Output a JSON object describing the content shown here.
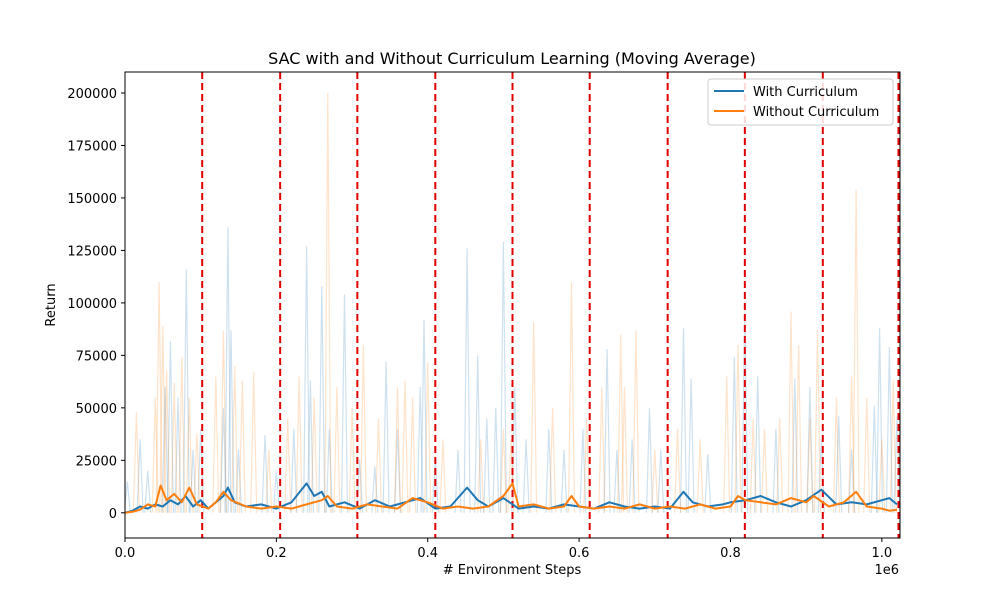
{
  "chart_data": {
    "type": "line",
    "title": "SAC with and Without Curriculum Learning (Moving Average)",
    "xlabel": "# Environment Steps",
    "ylabel": "Return",
    "x_offset_label": "1e6",
    "xlim": [
      0,
      1.024
    ],
    "ylim": [
      -12000,
      210000
    ],
    "x_ticks": [
      0.0,
      0.2,
      0.4,
      0.6,
      0.8,
      1.0
    ],
    "x_tick_labels": [
      "0.0",
      "0.2",
      "0.4",
      "0.6",
      "0.8",
      "1.0"
    ],
    "y_ticks": [
      0,
      25000,
      50000,
      75000,
      100000,
      125000,
      150000,
      175000,
      200000
    ],
    "y_tick_labels": [
      "0",
      "25000",
      "50000",
      "75000",
      "100000",
      "125000",
      "150000",
      "175000",
      "200000"
    ],
    "grid": false,
    "legend_position": "top-right",
    "curriculum_boundaries": [
      0.102,
      0.205,
      0.307,
      0.41,
      0.512,
      0.614,
      0.717,
      0.819,
      0.922,
      1.022
    ],
    "series": [
      {
        "name": "With Curriculum",
        "color": "#1f77b4",
        "raw_peaks": [
          [
            0.003,
            15000
          ],
          [
            0.02,
            35000
          ],
          [
            0.03,
            20000
          ],
          [
            0.053,
            60000
          ],
          [
            0.06,
            82000
          ],
          [
            0.07,
            55000
          ],
          [
            0.081,
            116000
          ],
          [
            0.09,
            30000
          ],
          [
            0.1,
            40000
          ],
          [
            0.13,
            50000
          ],
          [
            0.136,
            136000
          ],
          [
            0.14,
            87000
          ],
          [
            0.15,
            30000
          ],
          [
            0.185,
            37000
          ],
          [
            0.2,
            20000
          ],
          [
            0.223,
            40000
          ],
          [
            0.24,
            127000
          ],
          [
            0.245,
            63000
          ],
          [
            0.26,
            108000
          ],
          [
            0.27,
            40000
          ],
          [
            0.29,
            104000
          ],
          [
            0.31,
            25000
          ],
          [
            0.33,
            22000
          ],
          [
            0.345,
            72000
          ],
          [
            0.36,
            40000
          ],
          [
            0.39,
            60000
          ],
          [
            0.395,
            92000
          ],
          [
            0.41,
            25000
          ],
          [
            0.44,
            30000
          ],
          [
            0.452,
            126000
          ],
          [
            0.466,
            75000
          ],
          [
            0.478,
            45000
          ],
          [
            0.49,
            50000
          ],
          [
            0.5,
            129000
          ],
          [
            0.515,
            60000
          ],
          [
            0.53,
            35000
          ],
          [
            0.56,
            40000
          ],
          [
            0.58,
            30000
          ],
          [
            0.605,
            40000
          ],
          [
            0.637,
            78000
          ],
          [
            0.65,
            30000
          ],
          [
            0.67,
            35000
          ],
          [
            0.693,
            50000
          ],
          [
            0.708,
            30000
          ],
          [
            0.738,
            88000
          ],
          [
            0.748,
            64000
          ],
          [
            0.77,
            28000
          ],
          [
            0.805,
            74000
          ],
          [
            0.819,
            95000
          ],
          [
            0.836,
            65000
          ],
          [
            0.86,
            40000
          ],
          [
            0.885,
            64000
          ],
          [
            0.905,
            60000
          ],
          [
            0.92,
            35000
          ],
          [
            0.943,
            46000
          ],
          [
            0.96,
            30000
          ],
          [
            0.99,
            51000
          ],
          [
            0.997,
            88000
          ],
          [
            1.01,
            79000
          ],
          [
            1.02,
            46000
          ]
        ],
        "moving_avg": [
          [
            0.0,
            0
          ],
          [
            0.01,
            1000
          ],
          [
            0.02,
            3000
          ],
          [
            0.03,
            2000
          ],
          [
            0.04,
            4000
          ],
          [
            0.05,
            3000
          ],
          [
            0.06,
            6000
          ],
          [
            0.07,
            4000
          ],
          [
            0.08,
            8000
          ],
          [
            0.09,
            3000
          ],
          [
            0.1,
            6000
          ],
          [
            0.11,
            2000
          ],
          [
            0.12,
            5000
          ],
          [
            0.13,
            8000
          ],
          [
            0.136,
            12000
          ],
          [
            0.145,
            5000
          ],
          [
            0.16,
            3000
          ],
          [
            0.18,
            4000
          ],
          [
            0.2,
            2000
          ],
          [
            0.22,
            5000
          ],
          [
            0.24,
            14000
          ],
          [
            0.25,
            8000
          ],
          [
            0.26,
            10000
          ],
          [
            0.27,
            3000
          ],
          [
            0.29,
            5000
          ],
          [
            0.31,
            2000
          ],
          [
            0.33,
            6000
          ],
          [
            0.35,
            3000
          ],
          [
            0.37,
            5000
          ],
          [
            0.39,
            7000
          ],
          [
            0.41,
            2000
          ],
          [
            0.43,
            3000
          ],
          [
            0.452,
            12000
          ],
          [
            0.466,
            6000
          ],
          [
            0.48,
            3000
          ],
          [
            0.5,
            7000
          ],
          [
            0.52,
            2000
          ],
          [
            0.54,
            3000
          ],
          [
            0.56,
            2000
          ],
          [
            0.58,
            4000
          ],
          [
            0.6,
            3000
          ],
          [
            0.62,
            2000
          ],
          [
            0.64,
            5000
          ],
          [
            0.66,
            3000
          ],
          [
            0.68,
            2000
          ],
          [
            0.7,
            3000
          ],
          [
            0.72,
            2000
          ],
          [
            0.738,
            10000
          ],
          [
            0.75,
            5000
          ],
          [
            0.77,
            3000
          ],
          [
            0.79,
            4000
          ],
          [
            0.8,
            5000
          ],
          [
            0.82,
            6000
          ],
          [
            0.84,
            8000
          ],
          [
            0.86,
            5000
          ],
          [
            0.88,
            3000
          ],
          [
            0.9,
            6000
          ],
          [
            0.92,
            11000
          ],
          [
            0.94,
            4000
          ],
          [
            0.96,
            5000
          ],
          [
            0.98,
            4000
          ],
          [
            1.0,
            6000
          ],
          [
            1.01,
            7000
          ],
          [
            1.02,
            4000
          ]
        ]
      },
      {
        "name": "Without Curriculum",
        "color": "#ff7f0e",
        "raw_peaks": [
          [
            0.015,
            48000
          ],
          [
            0.04,
            55000
          ],
          [
            0.045,
            110000
          ],
          [
            0.05,
            89000
          ],
          [
            0.055,
            68000
          ],
          [
            0.065,
            62000
          ],
          [
            0.075,
            74000
          ],
          [
            0.085,
            55000
          ],
          [
            0.095,
            38000
          ],
          [
            0.12,
            65000
          ],
          [
            0.13,
            87000
          ],
          [
            0.145,
            70000
          ],
          [
            0.155,
            63000
          ],
          [
            0.17,
            67000
          ],
          [
            0.19,
            30000
          ],
          [
            0.215,
            45000
          ],
          [
            0.23,
            65000
          ],
          [
            0.25,
            55000
          ],
          [
            0.268,
            200000
          ],
          [
            0.28,
            60000
          ],
          [
            0.3,
            50000
          ],
          [
            0.315,
            80000
          ],
          [
            0.335,
            45000
          ],
          [
            0.36,
            60000
          ],
          [
            0.37,
            63000
          ],
          [
            0.38,
            55000
          ],
          [
            0.4,
            72000
          ],
          [
            0.42,
            35000
          ],
          [
            0.47,
            35000
          ],
          [
            0.5,
            40000
          ],
          [
            0.51,
            35000
          ],
          [
            0.54,
            91000
          ],
          [
            0.565,
            50000
          ],
          [
            0.59,
            110000
          ],
          [
            0.61,
            45000
          ],
          [
            0.63,
            60000
          ],
          [
            0.655,
            85000
          ],
          [
            0.66,
            60000
          ],
          [
            0.675,
            87000
          ],
          [
            0.7,
            30000
          ],
          [
            0.73,
            40000
          ],
          [
            0.76,
            35000
          ],
          [
            0.795,
            65000
          ],
          [
            0.81,
            80000
          ],
          [
            0.83,
            45000
          ],
          [
            0.845,
            40000
          ],
          [
            0.865,
            45000
          ],
          [
            0.88,
            96000
          ],
          [
            0.89,
            80000
          ],
          [
            0.905,
            45000
          ],
          [
            0.915,
            87000
          ],
          [
            0.94,
            55000
          ],
          [
            0.96,
            65000
          ],
          [
            0.966,
            154000
          ],
          [
            0.98,
            55000
          ],
          [
            1.0,
            35000
          ],
          [
            1.015,
            63000
          ]
        ],
        "moving_avg": [
          [
            0.0,
            0
          ],
          [
            0.01,
            500
          ],
          [
            0.02,
            1500
          ],
          [
            0.03,
            4000
          ],
          [
            0.04,
            3000
          ],
          [
            0.047,
            13000
          ],
          [
            0.055,
            6000
          ],
          [
            0.065,
            9000
          ],
          [
            0.075,
            5000
          ],
          [
            0.085,
            12000
          ],
          [
            0.095,
            4000
          ],
          [
            0.11,
            2000
          ],
          [
            0.12,
            5000
          ],
          [
            0.13,
            10000
          ],
          [
            0.14,
            6000
          ],
          [
            0.16,
            3000
          ],
          [
            0.18,
            2000
          ],
          [
            0.2,
            3000
          ],
          [
            0.22,
            2000
          ],
          [
            0.24,
            4000
          ],
          [
            0.26,
            6000
          ],
          [
            0.268,
            8000
          ],
          [
            0.28,
            3000
          ],
          [
            0.3,
            2000
          ],
          [
            0.32,
            4000
          ],
          [
            0.34,
            3000
          ],
          [
            0.36,
            2000
          ],
          [
            0.38,
            7000
          ],
          [
            0.4,
            5000
          ],
          [
            0.42,
            2000
          ],
          [
            0.44,
            3000
          ],
          [
            0.46,
            2000
          ],
          [
            0.48,
            3000
          ],
          [
            0.5,
            8000
          ],
          [
            0.512,
            14000
          ],
          [
            0.52,
            3000
          ],
          [
            0.54,
            4000
          ],
          [
            0.56,
            2000
          ],
          [
            0.58,
            3000
          ],
          [
            0.59,
            8000
          ],
          [
            0.6,
            3000
          ],
          [
            0.62,
            2000
          ],
          [
            0.64,
            3000
          ],
          [
            0.66,
            2000
          ],
          [
            0.68,
            4000
          ],
          [
            0.7,
            2000
          ],
          [
            0.72,
            3000
          ],
          [
            0.74,
            2000
          ],
          [
            0.76,
            4000
          ],
          [
            0.78,
            2000
          ],
          [
            0.8,
            3000
          ],
          [
            0.81,
            8000
          ],
          [
            0.82,
            6000
          ],
          [
            0.84,
            5000
          ],
          [
            0.86,
            4000
          ],
          [
            0.88,
            7000
          ],
          [
            0.9,
            5000
          ],
          [
            0.91,
            8000
          ],
          [
            0.93,
            3000
          ],
          [
            0.95,
            5000
          ],
          [
            0.966,
            10000
          ],
          [
            0.98,
            3000
          ],
          [
            1.0,
            2000
          ],
          [
            1.01,
            1000
          ],
          [
            1.02,
            1500
          ]
        ]
      }
    ]
  }
}
